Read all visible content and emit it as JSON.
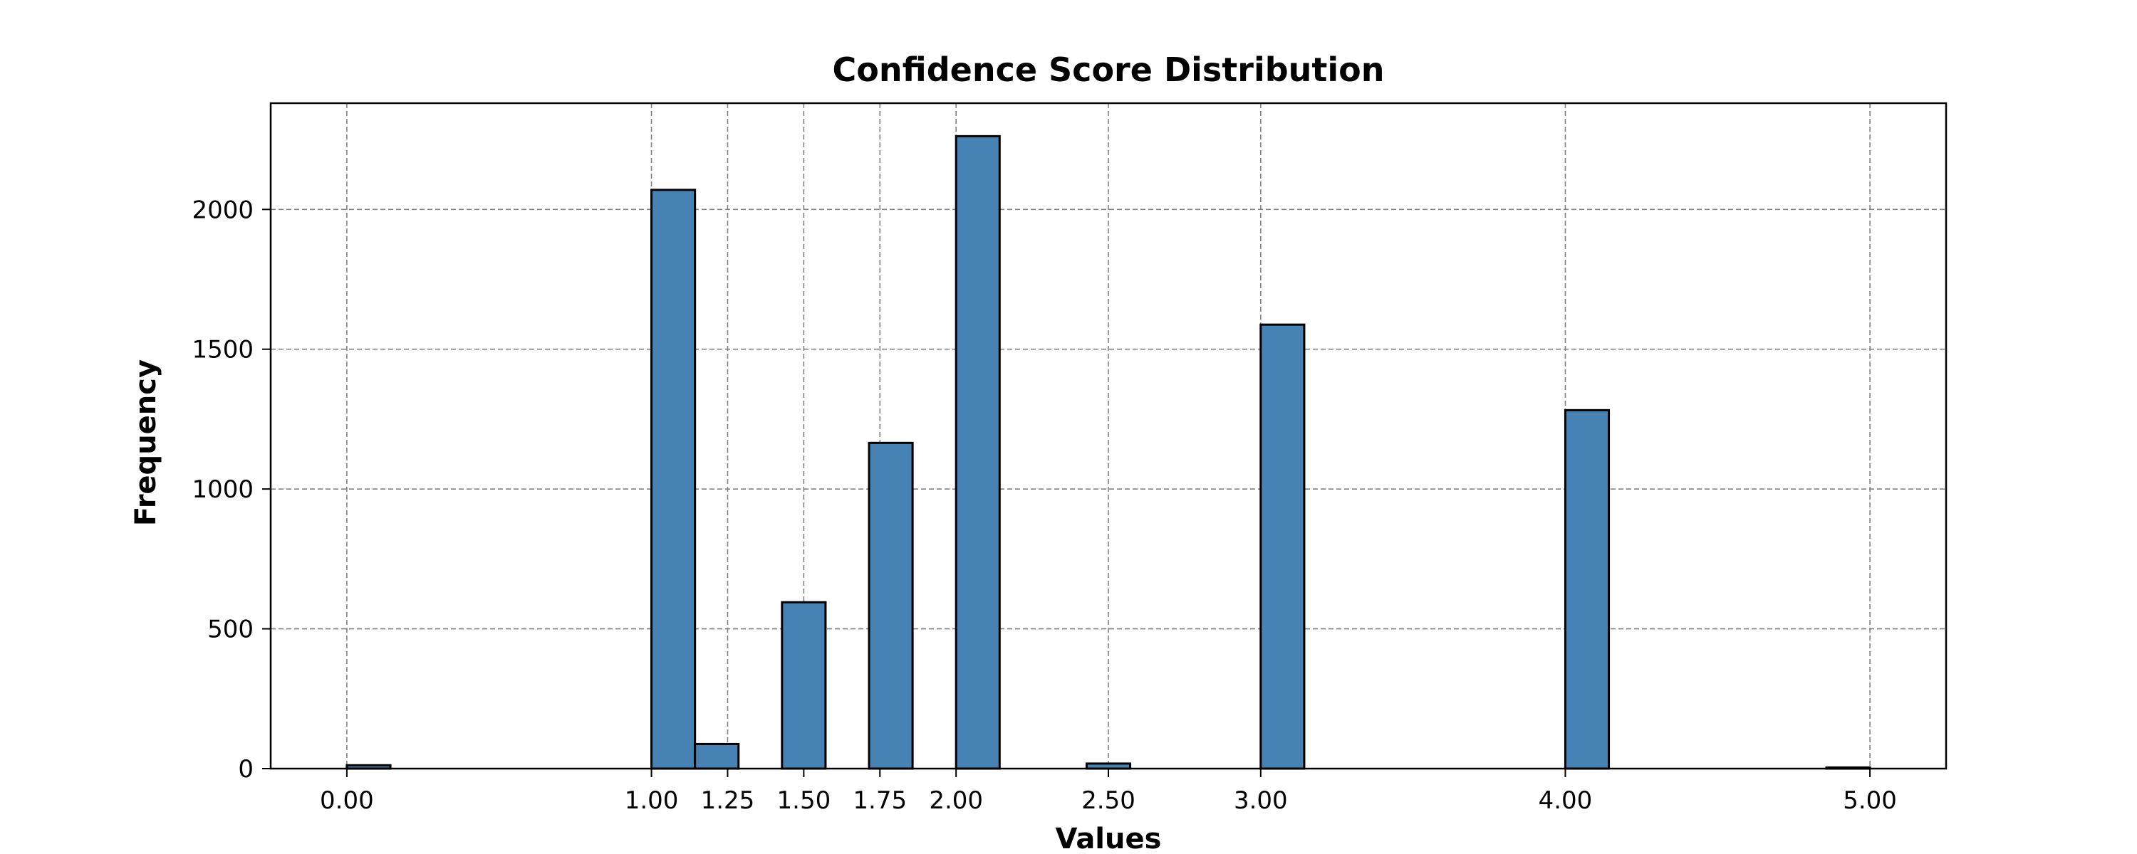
{
  "chart_data": {
    "type": "bar",
    "title": "Confidence Score Distribution",
    "xlabel": "Values",
    "ylabel": "Frequency",
    "xlim": [
      -0.25,
      5.25
    ],
    "ylim": [
      0,
      2380
    ],
    "xticks": [
      0.0,
      1.0,
      1.25,
      1.5,
      1.75,
      2.0,
      2.5,
      3.0,
      4.0,
      5.0
    ],
    "xtick_labels": [
      "0.00",
      "1.00",
      "1.25",
      "1.50",
      "1.75",
      "2.00",
      "2.50",
      "3.00",
      "4.00",
      "5.00"
    ],
    "yticks": [
      0,
      500,
      1000,
      1500,
      2000
    ],
    "ytick_labels": [
      "0",
      "500",
      "1000",
      "1500",
      "2000"
    ],
    "bin_width": 0.1429,
    "bins": [
      {
        "start": 0.0,
        "value": 12
      },
      {
        "start": 1.0,
        "value": 2070
      },
      {
        "start": 1.1429,
        "value": 88
      },
      {
        "start": 1.4286,
        "value": 595
      },
      {
        "start": 1.7143,
        "value": 1165
      },
      {
        "start": 2.0,
        "value": 2262
      },
      {
        "start": 2.4286,
        "value": 18
      },
      {
        "start": 3.0,
        "value": 1588
      },
      {
        "start": 4.0,
        "value": 1282
      },
      {
        "start": 4.8571,
        "value": 4
      }
    ],
    "grid": true,
    "colors": {
      "bar_fill": "#4682b4",
      "bar_edge": "#000000",
      "grid": "#808080"
    }
  }
}
